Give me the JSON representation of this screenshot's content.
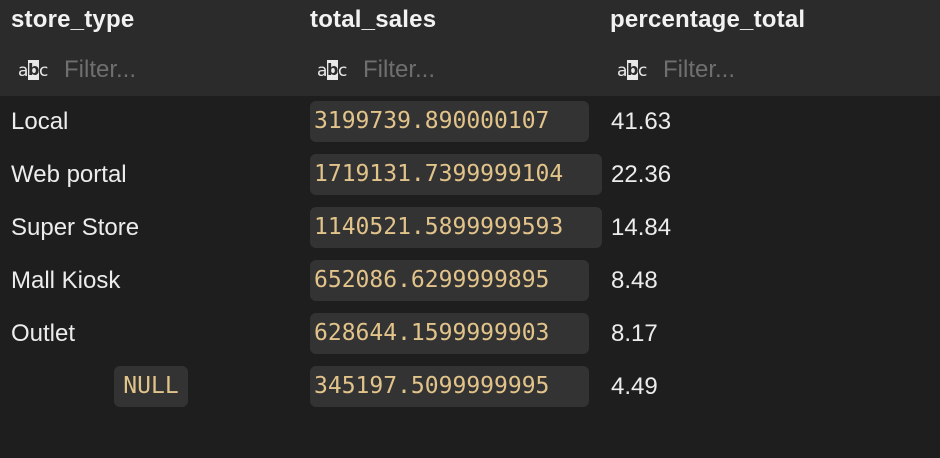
{
  "columns": [
    {
      "title": "store_type",
      "filter_placeholder": "Filter...",
      "type_icon": "abc-text-icon"
    },
    {
      "title": "total_sales",
      "filter_placeholder": "Filter...",
      "type_icon": "abc-text-icon"
    },
    {
      "title": "percentage_total",
      "filter_placeholder": "Filter...",
      "type_icon": "abc-text-icon"
    }
  ],
  "type_icon_letters": {
    "a": "a",
    "b": "b",
    "c": "c"
  },
  "rows": [
    {
      "store_type": "Local",
      "total_sales": "3199739.890000107",
      "percentage_total": "41.63"
    },
    {
      "store_type": "Web portal",
      "total_sales": "1719131.7399999104",
      "percentage_total": "22.36"
    },
    {
      "store_type": "Super Store",
      "total_sales": "1140521.5899999593",
      "percentage_total": "14.84"
    },
    {
      "store_type": "Mall Kiosk",
      "total_sales": "652086.6299999895",
      "percentage_total": "8.48"
    },
    {
      "store_type": "Outlet",
      "total_sales": "628644.1599999903",
      "percentage_total": "8.17"
    },
    {
      "store_type": "NULL",
      "total_sales": "345197.5099999995",
      "percentage_total": "4.49"
    }
  ],
  "colors": {
    "background": "#1e1e1e",
    "header_background": "#2b2b2b",
    "cell_highlight": "#333333",
    "numeric_text": "#e2c48b",
    "text": "#ececec"
  }
}
